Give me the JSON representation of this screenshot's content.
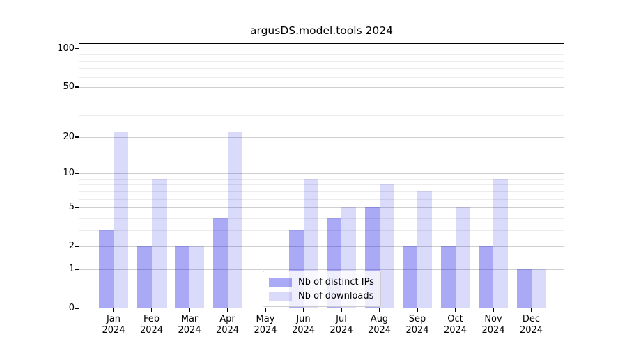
{
  "title": "argusDS.model.tools 2024",
  "chart_data": {
    "type": "bar",
    "title": "argusDS.model.tools 2024",
    "categories": [
      "Jan",
      "Feb",
      "Mar",
      "Apr",
      "May",
      "Jun",
      "Jul",
      "Aug",
      "Sep",
      "Oct",
      "Nov",
      "Dec"
    ],
    "category_year": "2024",
    "series": [
      {
        "name": "Nb of distinct IPs",
        "color": "#0a0ae659",
        "values": [
          3,
          2,
          2,
          4,
          0,
          3,
          4,
          5,
          2,
          2,
          2,
          1
        ]
      },
      {
        "name": "Nb of downloads",
        "color": "#0a0ae626",
        "values": [
          22,
          9,
          2,
          22,
          0,
          9,
          5,
          8,
          7,
          5,
          9,
          1
        ]
      }
    ],
    "yscale": "log1p",
    "ylim": [
      0,
      111
    ],
    "yticks": [
      0,
      1,
      2,
      5,
      10,
      20,
      50,
      100
    ],
    "yticks_minor": [
      3,
      4,
      6,
      7,
      8,
      9,
      30,
      40,
      60,
      70,
      80,
      90
    ],
    "grid": true,
    "legend": {
      "position": "lower center",
      "labels": [
        "Nb of distinct IPs",
        "Nb of downloads"
      ]
    },
    "colors": {
      "grid_major": "#cfcfcf",
      "grid_minor": "#ececec",
      "axis": "#000000",
      "background": "#ffffff"
    }
  }
}
